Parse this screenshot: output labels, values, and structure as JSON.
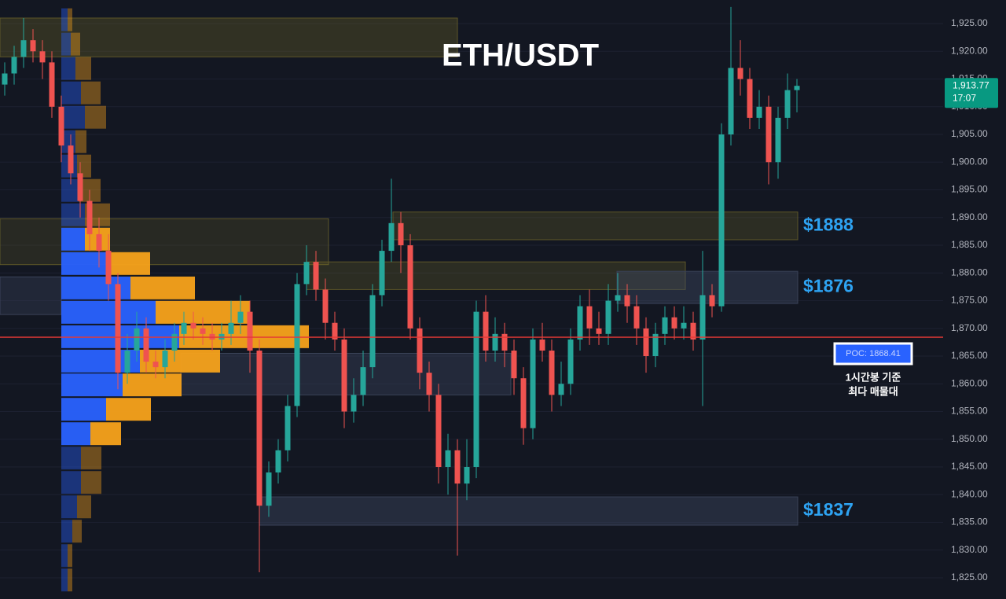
{
  "chart_data": {
    "type": "candlestick",
    "title": "ETH/USDT",
    "ylim": [
      1821.17,
      1929.26
    ],
    "yticks": [
      {
        "value": 1825,
        "label": "1,825.00"
      },
      {
        "value": 1830,
        "label": "1,830.00"
      },
      {
        "value": 1835,
        "label": "1,835.00"
      },
      {
        "value": 1840,
        "label": "1,840.00"
      },
      {
        "value": 1845,
        "label": "1,845.00"
      },
      {
        "value": 1850,
        "label": "1,850.00"
      },
      {
        "value": 1855,
        "label": "1,855.00"
      },
      {
        "value": 1860,
        "label": "1,860.00"
      },
      {
        "value": 1865,
        "label": "1,865.00"
      },
      {
        "value": 1870,
        "label": "1,870.00"
      },
      {
        "value": 1875,
        "label": "1,875.00"
      },
      {
        "value": 1880,
        "label": "1,880.00"
      },
      {
        "value": 1885,
        "label": "1,885.00"
      },
      {
        "value": 1890,
        "label": "1,890.00"
      },
      {
        "value": 1895,
        "label": "1,895.00"
      },
      {
        "value": 1900,
        "label": "1,900.00"
      },
      {
        "value": 1905,
        "label": "1,905.00"
      },
      {
        "value": 1910,
        "label": "1,910.00"
      },
      {
        "value": 1915,
        "label": "1,915.00"
      },
      {
        "value": 1920,
        "label": "1,920.00"
      },
      {
        "value": 1925,
        "label": "1,925.00"
      }
    ],
    "up_color": "#26a69a",
    "down_color": "#ef5350",
    "open": [
      1914,
      1916,
      1919,
      1922,
      1920,
      1918,
      1910,
      1903,
      1898,
      1893,
      1887,
      1884,
      1878,
      1862,
      1866,
      1870,
      1864,
      1863,
      1866,
      1869,
      1871,
      1870,
      1869,
      1868,
      1869,
      1871,
      1873,
      1866,
      1838,
      1844,
      1848,
      1856,
      1878,
      1882,
      1877,
      1871,
      1868,
      1855,
      1858,
      1863,
      1876,
      1884,
      1889,
      1885,
      1870,
      1862,
      1858,
      1845,
      1848,
      1842,
      1845,
      1873,
      1866,
      1869,
      1866,
      1861,
      1852,
      1868,
      1866,
      1858,
      1860,
      1868,
      1874,
      1870,
      1869,
      1875,
      1876,
      1874,
      1870,
      1865,
      1869,
      1872,
      1870,
      1871,
      1868,
      1876,
      1874,
      1905,
      1917,
      1915,
      1908,
      1910,
      1900,
      1908,
      1913
    ],
    "high": [
      1918,
      1921,
      1926,
      1924,
      1922,
      1920,
      1912,
      1905,
      1900,
      1895,
      1890,
      1887,
      1880,
      1869,
      1873,
      1872,
      1866,
      1868,
      1871,
      1873,
      1873,
      1872,
      1871,
      1871,
      1875,
      1876,
      1875,
      1868,
      1846,
      1850,
      1858,
      1880,
      1885,
      1884,
      1879,
      1873,
      1870,
      1861,
      1866,
      1878,
      1886,
      1897,
      1891,
      1887,
      1872,
      1864,
      1860,
      1851,
      1850,
      1850,
      1875,
      1876,
      1872,
      1871,
      1868,
      1863,
      1870,
      1871,
      1868,
      1864,
      1870,
      1876,
      1877,
      1873,
      1878,
      1880,
      1878,
      1876,
      1872,
      1871,
      1874,
      1874,
      1874,
      1873,
      1884,
      1878,
      1907,
      1928,
      1922,
      1917,
      1913,
      1912,
      1910,
      1916,
      1915
    ],
    "low": [
      1912,
      1914,
      1917,
      1918,
      1915,
      1908,
      1900,
      1896,
      1890,
      1884,
      1881,
      1875,
      1859,
      1860,
      1864,
      1862,
      1861,
      1861,
      1864,
      1867,
      1868,
      1867,
      1866,
      1866,
      1867,
      1869,
      1862,
      1826,
      1836,
      1842,
      1846,
      1854,
      1876,
      1875,
      1868,
      1866,
      1852,
      1853,
      1856,
      1861,
      1874,
      1882,
      1880,
      1868,
      1859,
      1855,
      1842,
      1840,
      1829,
      1839,
      1843,
      1864,
      1864,
      1863,
      1858,
      1849,
      1850,
      1864,
      1855,
      1856,
      1858,
      1866,
      1867,
      1867,
      1867,
      1873,
      1871,
      1867,
      1862,
      1863,
      1867,
      1868,
      1868,
      1866,
      1856,
      1872,
      1873,
      1903,
      1912,
      1906,
      1906,
      1896,
      1897,
      1906,
      1909
    ],
    "close": [
      1916,
      1919,
      1922,
      1920,
      1918,
      1910,
      1903,
      1898,
      1893,
      1887,
      1884,
      1878,
      1862,
      1866,
      1870,
      1864,
      1863,
      1866,
      1869,
      1871,
      1870,
      1869,
      1868,
      1869,
      1871,
      1873,
      1866,
      1838,
      1844,
      1848,
      1856,
      1878,
      1882,
      1877,
      1871,
      1868,
      1855,
      1858,
      1863,
      1876,
      1884,
      1889,
      1885,
      1870,
      1862,
      1858,
      1845,
      1848,
      1842,
      1845,
      1873,
      1866,
      1869,
      1866,
      1861,
      1852,
      1868,
      1866,
      1858,
      1860,
      1868,
      1874,
      1870,
      1869,
      1875,
      1876,
      1874,
      1870,
      1865,
      1869,
      1872,
      1870,
      1871,
      1868,
      1876,
      1874,
      1905,
      1917,
      1915,
      1908,
      1910,
      1900,
      1908,
      1913,
      1913.77
    ],
    "volume_profile": {
      "prices": [
        1925.7,
        1921.3,
        1916.9,
        1912.5,
        1908.1,
        1903.7,
        1899.3,
        1894.9,
        1890.5,
        1886.1,
        1881.7,
        1877.3,
        1872.9,
        1868.5,
        1864.1,
        1859.8,
        1855.4,
        1851.0,
        1846.6,
        1842.2,
        1837.8,
        1833.4,
        1829.0,
        1824.6
      ],
      "buy": [
        8,
        12,
        18,
        25,
        30,
        18,
        20,
        22,
        30,
        30,
        58,
        88,
        120,
        150,
        100,
        78,
        57,
        37,
        25,
        25,
        20,
        14,
        8,
        8
      ],
      "sell": [
        6,
        12,
        20,
        25,
        27,
        14,
        18,
        28,
        32,
        32,
        55,
        82,
        120,
        165,
        102,
        75,
        57,
        39,
        26,
        26,
        18,
        12,
        6,
        6
      ],
      "value_area": [
        1849,
        1888
      ],
      "buy_color": "#2962ff",
      "sell_color": "#f7a21b"
    },
    "zones": [
      {
        "range": [
          1919,
          1926
        ]
      },
      {
        "range": [
          1881.5,
          1889.8
        ]
      },
      {
        "range": [
          1872.5,
          1879.3
        ]
      },
      {
        "range": [
          1886,
          1891
        ],
        "label": "$1888"
      },
      {
        "range": [
          1877,
          1882
        ]
      },
      {
        "range": [
          1874.5,
          1880.3
        ],
        "label": "$1876"
      },
      {
        "range": [
          1858,
          1865.5
        ]
      },
      {
        "range": [
          1834.5,
          1839.6
        ],
        "label": "$1837"
      }
    ],
    "poc": {
      "value": 1868.41,
      "label": "POC: 1868.41",
      "color": "#e53935"
    },
    "poc_note": [
      "1시간봉 기준",
      "최다 매물대"
    ],
    "last_price": {
      "value": 1913.77,
      "label": "1,913.77"
    },
    "countdown": "17:07"
  }
}
